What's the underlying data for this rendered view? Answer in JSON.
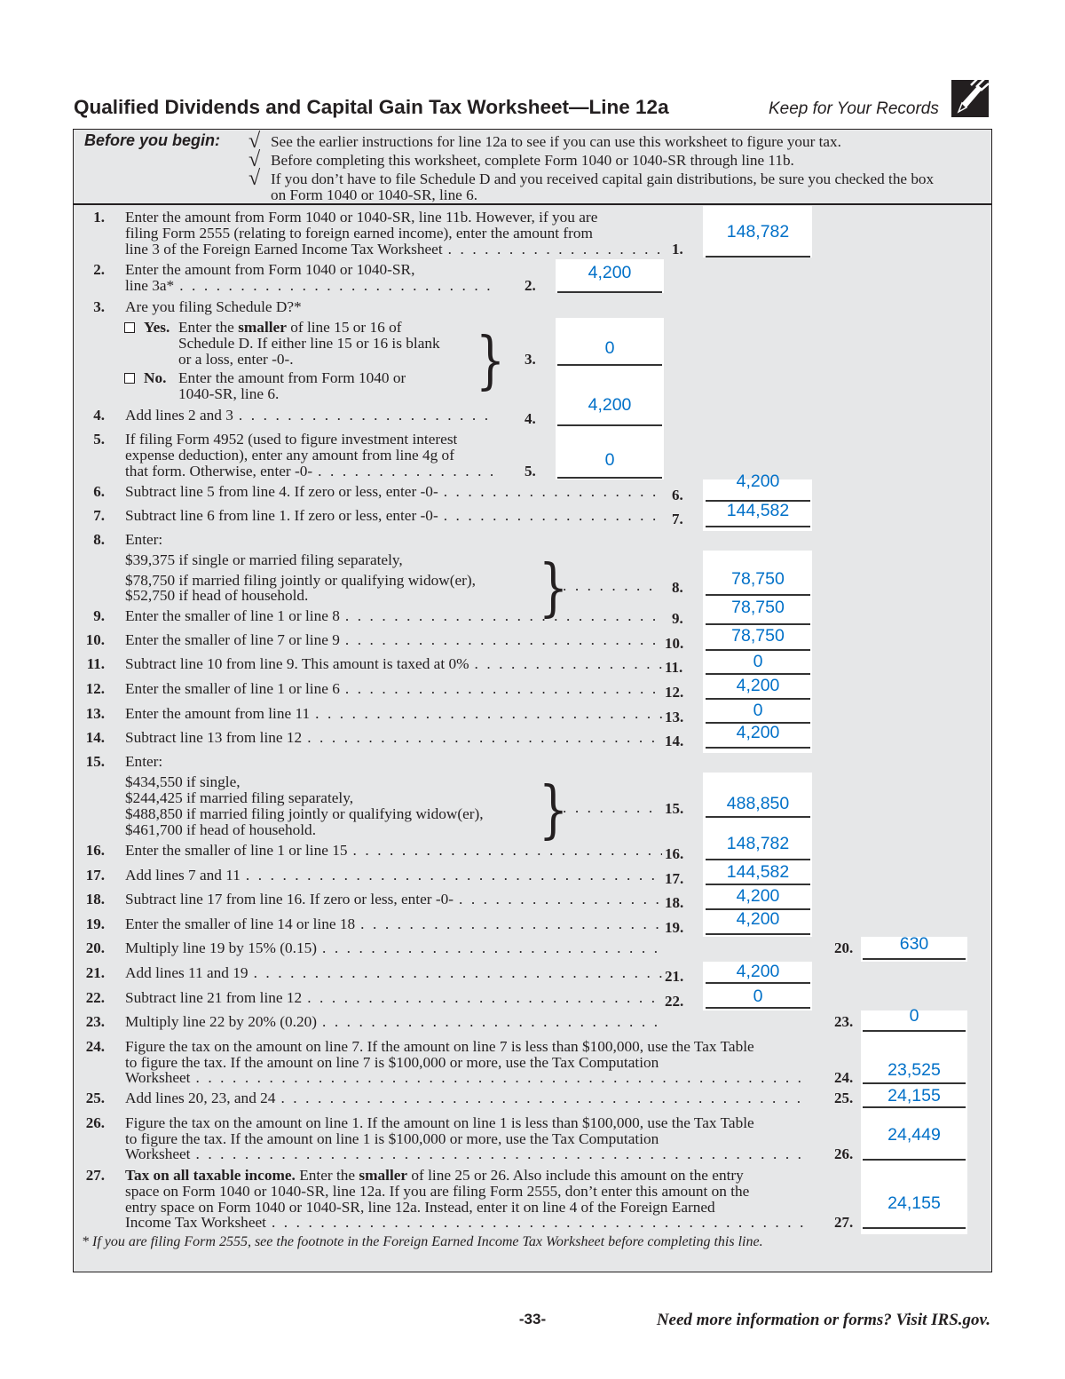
{
  "header": {
    "title": "Qualified Dividends and Capital Gain Tax Worksheet—Line 12a",
    "keep": "Keep for Your Records",
    "icon": "pencil-icon"
  },
  "before": {
    "label": "Before you begin:",
    "check": "√",
    "items": [
      "See the earlier instructions for line 12a to see if you can use this worksheet to figure your tax.",
      "Before completing this worksheet, complete Form 1040 or 1040-SR through line 11b.",
      "If you don’t have to file Schedule D and you received capital gain distributions, be sure you checked the box",
      "on Form 1040 or 1040-SR, line 6."
    ]
  },
  "lines": [
    {
      "num": "1.",
      "text": [
        "Enter the amount from Form 1040 or 1040-SR, line 11b. However, if you are",
        "filing Form 2555 (relating to foreign earned income), enter the amount from",
        "line 3 of the Foreign Earned Income Tax Worksheet"
      ],
      "label": "1.",
      "value": "148,782"
    },
    {
      "num": "2.",
      "text": [
        "Enter the amount from Form 1040 or 1040-SR,",
        "line 3a*"
      ],
      "label": "2.",
      "value": "4,200"
    },
    {
      "num": "3.",
      "text": [
        "Are you filing Schedule D?*"
      ],
      "label": "3.",
      "value": "0",
      "yes": {
        "label": "Yes.",
        "text": [
          [
            {
              "t": "Enter the "
            },
            {
              "t": "smaller",
              "b": true
            },
            {
              "t": " of line 15 or 16 of"
            }
          ],
          "Schedule D. If either line 15 or 16 is blank",
          "or a loss, enter -0-."
        ]
      },
      "no": {
        "label": "No.",
        "text": [
          "Enter the amount from Form 1040 or",
          "1040-SR, line 6."
        ]
      }
    },
    {
      "num": "4.",
      "text": [
        "Add lines 2 and 3"
      ],
      "label": "4.",
      "value": "4,200"
    },
    {
      "num": "5.",
      "text": [
        "If filing Form 4952 (used to figure investment interest",
        "expense deduction), enter any amount from line 4g of",
        "that form. Otherwise, enter -0-"
      ],
      "label": "5.",
      "value": "0"
    },
    {
      "num": "6.",
      "text": [
        "Subtract line 5 from line 4. If zero or less, enter -0-"
      ],
      "label": "6.",
      "value": "4,200"
    },
    {
      "num": "7.",
      "text": [
        "Subtract line 6 from line 1. If zero or less, enter -0-"
      ],
      "label": "7.",
      "value": "144,582"
    },
    {
      "num": "8.",
      "text": [
        "Enter:",
        "$39,375 if single or married filing separately,",
        "$78,750 if married filing jointly or qualifying widow(er),",
        "$52,750 if head of household."
      ],
      "label": "8.",
      "value": "78,750"
    },
    {
      "num": "9.",
      "text": [
        "Enter the smaller of line 1 or line 8"
      ],
      "label": "9.",
      "value": "78,750"
    },
    {
      "num": "10.",
      "text": [
        "Enter the smaller of line 7 or line 9"
      ],
      "label": "10.",
      "value": "78,750"
    },
    {
      "num": "11.",
      "text": [
        "Subtract line 10 from line 9. This amount is taxed at 0%"
      ],
      "label": "11.",
      "value": "0"
    },
    {
      "num": "12.",
      "text": [
        "Enter the smaller of line 1 or line 6"
      ],
      "label": "12.",
      "value": "4,200"
    },
    {
      "num": "13.",
      "text": [
        "Enter the amount from line 11"
      ],
      "label": "13.",
      "value": "0"
    },
    {
      "num": "14.",
      "text": [
        "Subtract line 13 from line 12"
      ],
      "label": "14.",
      "value": "4,200"
    },
    {
      "num": "15.",
      "text": [
        "Enter:",
        "$434,550 if single,",
        "$244,425 if married filing separately,",
        "$488,850 if married filing jointly or qualifying widow(er),",
        "$461,700 if head of household."
      ],
      "label": "15.",
      "value": "488,850"
    },
    {
      "num": "16.",
      "text": [
        "Enter the smaller of line 1 or line 15"
      ],
      "label": "16.",
      "value": "148,782"
    },
    {
      "num": "17.",
      "text": [
        "Add lines 7 and 11"
      ],
      "label": "17.",
      "value": "144,582"
    },
    {
      "num": "18.",
      "text": [
        "Subtract line 17 from line 16. If zero or less, enter -0-"
      ],
      "label": "18.",
      "value": "4,200"
    },
    {
      "num": "19.",
      "text": [
        "Enter the smaller of line 14 or line 18"
      ],
      "label": "19.",
      "value": "4,200"
    },
    {
      "num": "20.",
      "text": [
        "Multiply line 19 by 15% (0.15)"
      ],
      "label": "20.",
      "value": "630"
    },
    {
      "num": "21.",
      "text": [
        "Add lines 11 and 19"
      ],
      "label": "21.",
      "value": "4,200"
    },
    {
      "num": "22.",
      "text": [
        "Subtract line 21 from line 12"
      ],
      "label": "22.",
      "value": "0"
    },
    {
      "num": "23.",
      "text": [
        "Multiply line 22 by 20% (0.20)"
      ],
      "label": "23.",
      "value": "0"
    },
    {
      "num": "24.",
      "text": [
        "Figure the tax on the amount on line 7. If the amount on line 7 is less than $100,000, use the Tax Table",
        "to figure the tax. If the amount on line 7 is $100,000 or more, use the Tax Computation",
        "Worksheet"
      ],
      "label": "24.",
      "value": "23,525"
    },
    {
      "num": "25.",
      "text": [
        "Add lines 20, 23, and 24"
      ],
      "label": "25.",
      "value": "24,155"
    },
    {
      "num": "26.",
      "text": [
        "Figure the tax on the amount on line 1. If the amount on line 1 is less than $100,000, use the Tax Table",
        "to figure the tax. If the amount on line 1 is $100,000 or more, use the Tax Computation",
        "Worksheet"
      ],
      "label": "26.",
      "value": "24,449"
    },
    {
      "num": "27.",
      "text": [
        [
          {
            "t": "Tax on all taxable income.",
            "b": true
          },
          {
            "t": " Enter the "
          },
          {
            "t": "smaller",
            "b": true
          },
          {
            "t": " of line 25 or 26. Also include this amount on the entry"
          }
        ],
        "space on Form 1040 or 1040-SR, line 12a. If you are filing Form 2555, don’t enter this amount on the",
        "entry space on Form 1040 or 1040-SR, line 12a. Instead, enter it on line 4 of the Foreign Earned",
        "Income Tax Worksheet"
      ],
      "label": "27.",
      "value": "24,155"
    }
  ],
  "footnote": "* If you are filing Form 2555, see the footnote in the Foreign Earned Income Tax Worksheet before completing this line.",
  "footer": {
    "page": "-33-",
    "more": "Need more information or forms? Visit IRS.gov."
  },
  "colors": {
    "entry_value": "#0070c8",
    "panel": "#e6e7e8"
  }
}
